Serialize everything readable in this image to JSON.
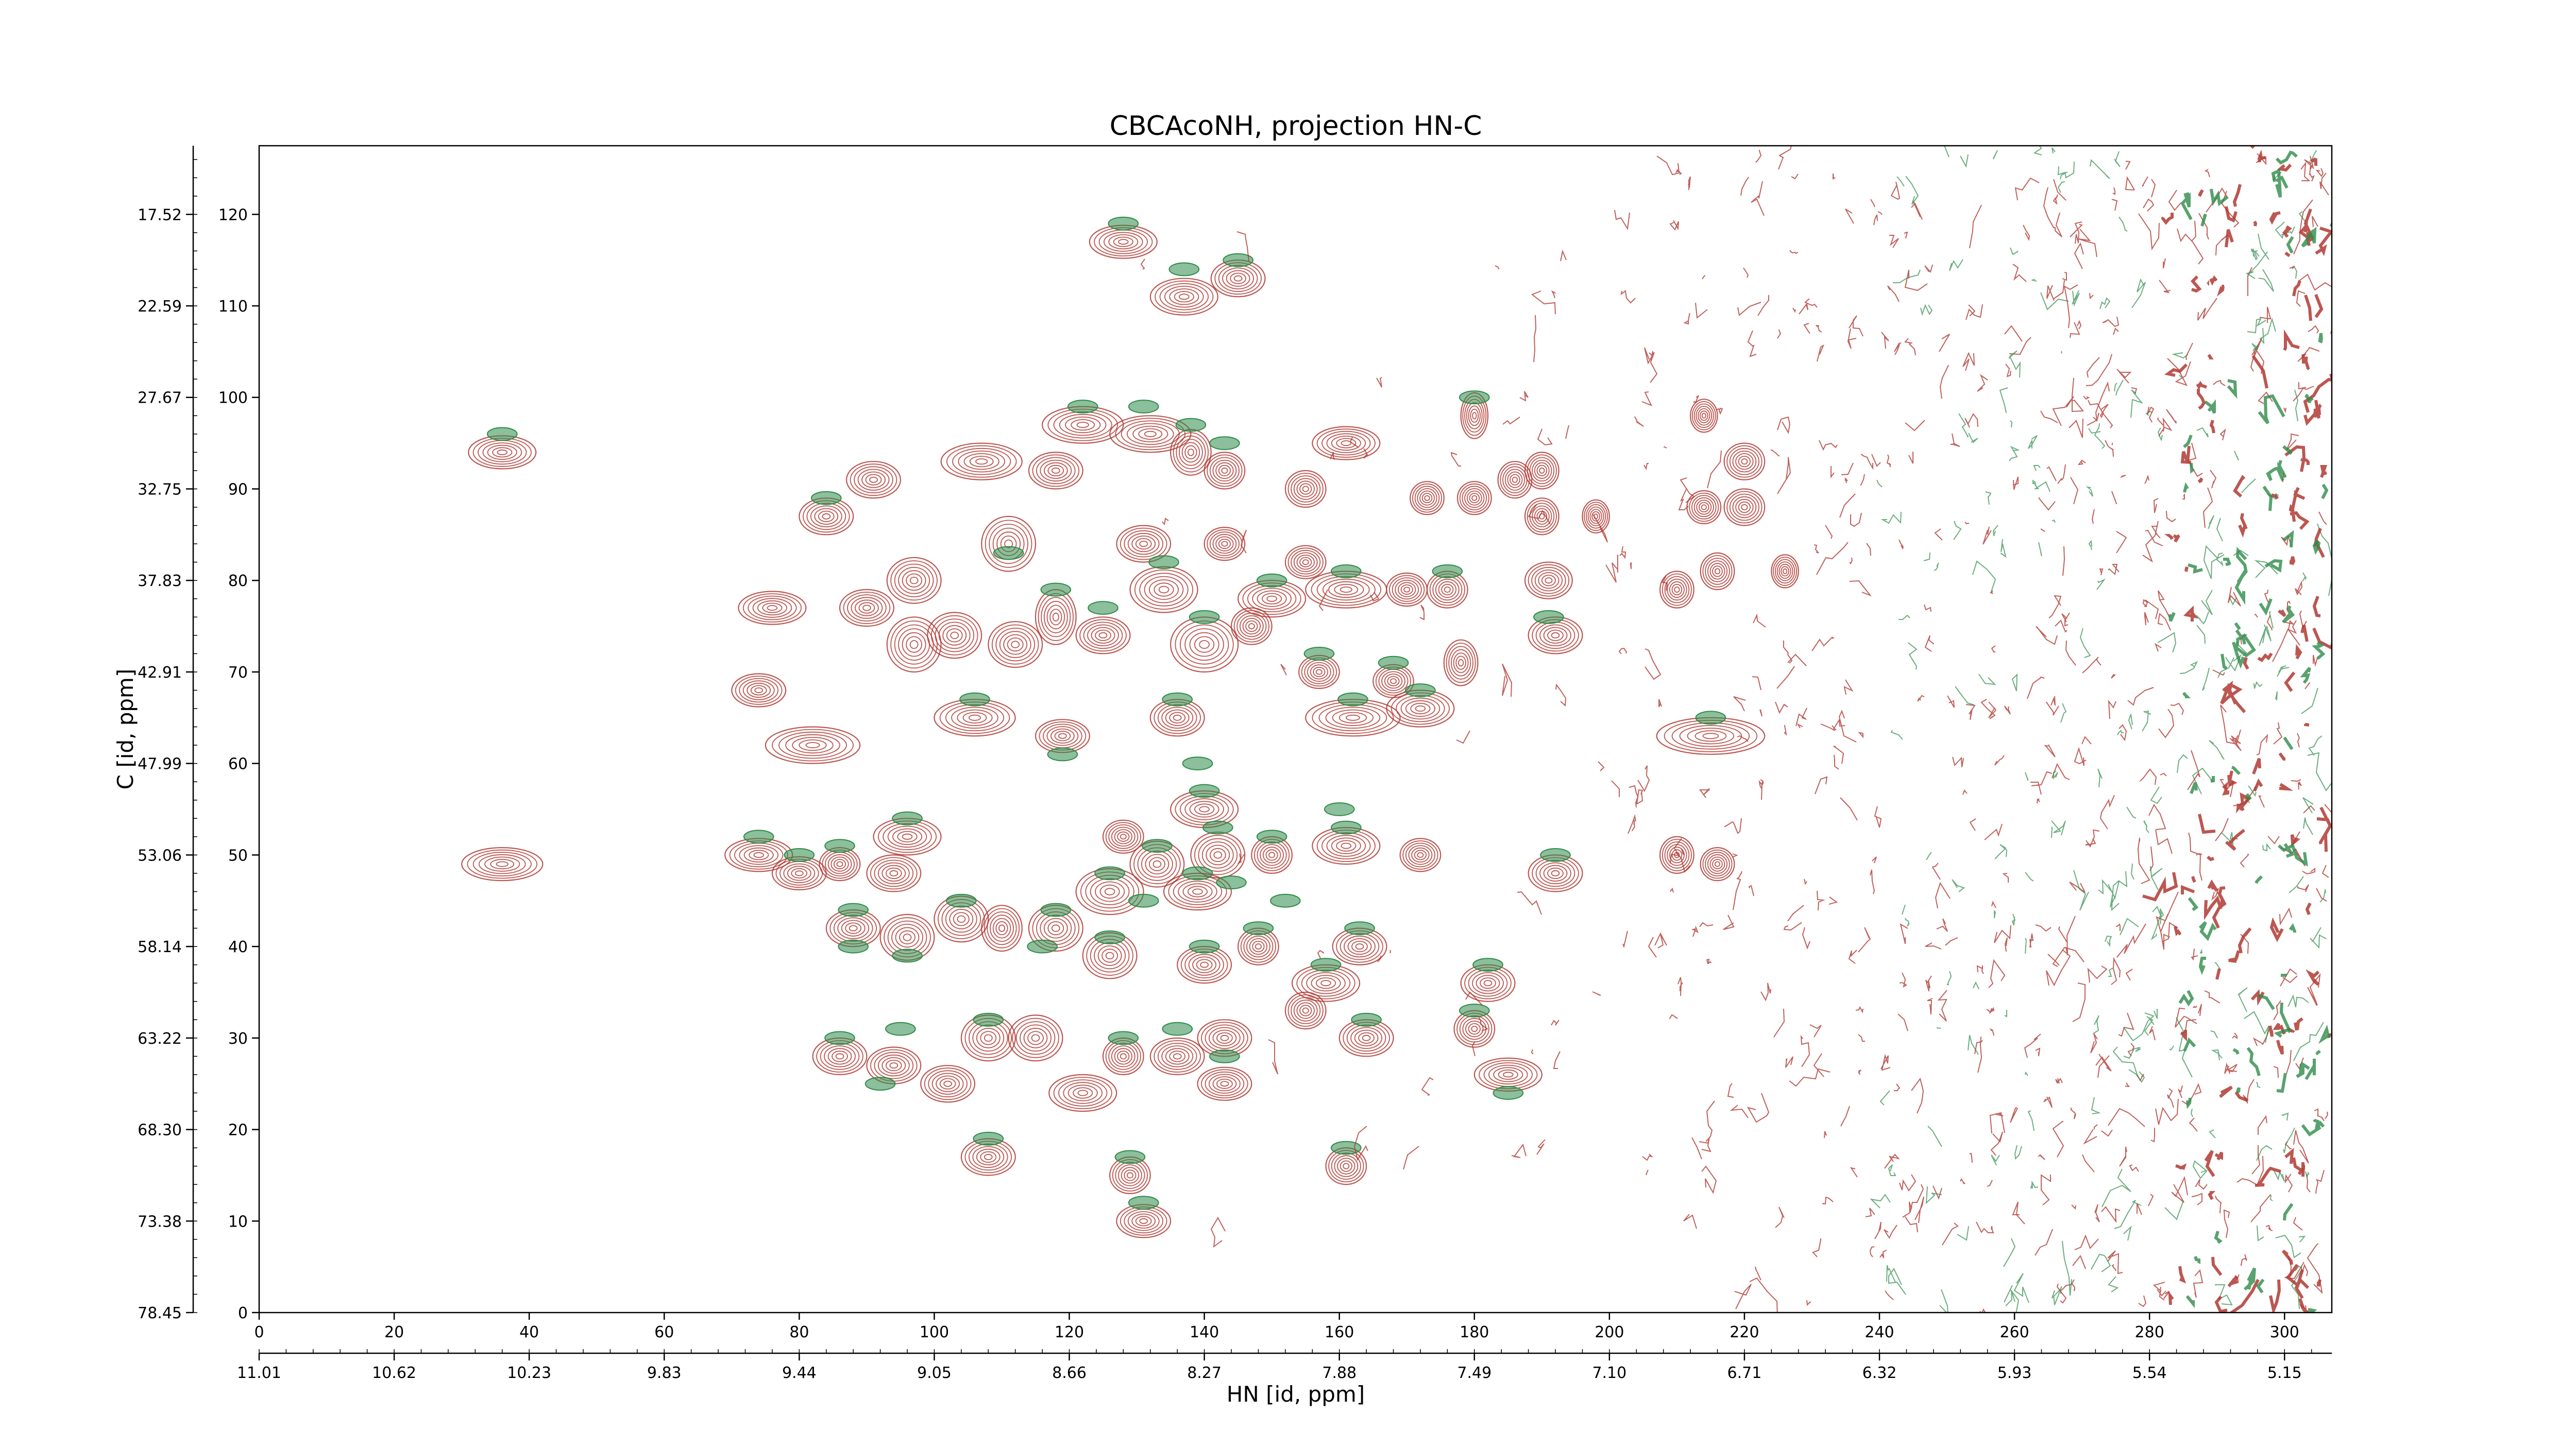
{
  "chart_data": {
    "type": "contour",
    "title": "CBCAcoNH, projection HN-C",
    "xlabel": "HN [id, ppm]",
    "ylabel": "C [id, ppm]",
    "xlim": [
      0,
      307
    ],
    "ylim": [
      0,
      127.5
    ],
    "x_index_ticks": [
      "0",
      "20",
      "40",
      "60",
      "80",
      "100",
      "120",
      "140",
      "160",
      "180",
      "200",
      "220",
      "240",
      "260",
      "280",
      "300"
    ],
    "x_ppm_ticks": [
      "11.01",
      "10.62",
      "10.23",
      "9.83",
      "9.44",
      "9.05",
      "8.66",
      "8.27",
      "7.88",
      "7.49",
      "7.10",
      "6.71",
      "6.32",
      "5.93",
      "5.54",
      "5.15"
    ],
    "y_index_ticks": [
      "0",
      "10",
      "20",
      "30",
      "40",
      "50",
      "60",
      "70",
      "80",
      "90",
      "100",
      "110",
      "120"
    ],
    "y_ppm_ticks": [
      "78.45",
      "73.38",
      "68.30",
      "63.22",
      "58.14",
      "53.06",
      "47.99",
      "42.91",
      "37.83",
      "32.75",
      "27.67",
      "22.59",
      "17.52"
    ],
    "colors": {
      "positive": "#b03a32",
      "negative": "#2e8b4a"
    },
    "peaks": [
      {
        "x": 36,
        "y": 94,
        "w": 5,
        "h": 1.8
      },
      {
        "x": 36,
        "y": 49,
        "w": 6,
        "h": 1.8
      },
      {
        "x": 128,
        "y": 117,
        "w": 5,
        "h": 1.8
      },
      {
        "x": 137,
        "y": 111,
        "w": 5,
        "h": 2
      },
      {
        "x": 145,
        "y": 113,
        "w": 4,
        "h": 2
      },
      {
        "x": 84,
        "y": 87,
        "w": 4,
        "h": 2
      },
      {
        "x": 91,
        "y": 91,
        "w": 4,
        "h": 2
      },
      {
        "x": 76,
        "y": 77,
        "w": 5,
        "h": 1.8
      },
      {
        "x": 74,
        "y": 68,
        "w": 4,
        "h": 1.8
      },
      {
        "x": 82,
        "y": 62,
        "w": 7,
        "h": 2
      },
      {
        "x": 107,
        "y": 93,
        "w": 6,
        "h": 2
      },
      {
        "x": 111,
        "y": 84,
        "w": 4,
        "h": 3
      },
      {
        "x": 118,
        "y": 92,
        "w": 4,
        "h": 2
      },
      {
        "x": 122,
        "y": 97,
        "w": 6,
        "h": 2
      },
      {
        "x": 132,
        "y": 96,
        "w": 6,
        "h": 2
      },
      {
        "x": 138,
        "y": 94,
        "w": 3,
        "h": 2.5
      },
      {
        "x": 143,
        "y": 92,
        "w": 3,
        "h": 2
      },
      {
        "x": 97,
        "y": 80,
        "w": 4,
        "h": 2.5
      },
      {
        "x": 90,
        "y": 77,
        "w": 4,
        "h": 2
      },
      {
        "x": 97,
        "y": 73,
        "w": 4,
        "h": 3
      },
      {
        "x": 103,
        "y": 74,
        "w": 4,
        "h": 2.5
      },
      {
        "x": 112,
        "y": 73,
        "w": 4,
        "h": 2.5
      },
      {
        "x": 118,
        "y": 76,
        "w": 3,
        "h": 3
      },
      {
        "x": 125,
        "y": 74,
        "w": 4,
        "h": 2
      },
      {
        "x": 131,
        "y": 84,
        "w": 4,
        "h": 2
      },
      {
        "x": 134,
        "y": 79,
        "w": 5,
        "h": 2.5
      },
      {
        "x": 140,
        "y": 73,
        "w": 5,
        "h": 3
      },
      {
        "x": 147,
        "y": 75,
        "w": 3,
        "h": 2
      },
      {
        "x": 143,
        "y": 84,
        "w": 3,
        "h": 1.8
      },
      {
        "x": 155,
        "y": 82,
        "w": 3,
        "h": 1.8
      },
      {
        "x": 150,
        "y": 78,
        "w": 5,
        "h": 2
      },
      {
        "x": 161,
        "y": 79,
        "w": 6,
        "h": 2
      },
      {
        "x": 170,
        "y": 79,
        "w": 3,
        "h": 1.8
      },
      {
        "x": 176,
        "y": 79,
        "w": 3,
        "h": 2
      },
      {
        "x": 155,
        "y": 90,
        "w": 3,
        "h": 2
      },
      {
        "x": 161,
        "y": 95,
        "w": 5,
        "h": 1.8
      },
      {
        "x": 173,
        "y": 89,
        "w": 2.5,
        "h": 1.8
      },
      {
        "x": 180,
        "y": 89,
        "w": 2.5,
        "h": 1.8
      },
      {
        "x": 186,
        "y": 91,
        "w": 2.5,
        "h": 2
      },
      {
        "x": 190,
        "y": 92,
        "w": 2.5,
        "h": 2
      },
      {
        "x": 190,
        "y": 87,
        "w": 2.5,
        "h": 2
      },
      {
        "x": 198,
        "y": 87,
        "w": 2,
        "h": 1.8
      },
      {
        "x": 180,
        "y": 98,
        "w": 2,
        "h": 2.5
      },
      {
        "x": 191,
        "y": 80,
        "w": 3.5,
        "h": 2
      },
      {
        "x": 192,
        "y": 74,
        "w": 4,
        "h": 2
      },
      {
        "x": 157,
        "y": 70,
        "w": 3,
        "h": 1.8
      },
      {
        "x": 168,
        "y": 69,
        "w": 3,
        "h": 1.8
      },
      {
        "x": 178,
        "y": 71,
        "w": 2.5,
        "h": 2.5
      },
      {
        "x": 106,
        "y": 65,
        "w": 6,
        "h": 2
      },
      {
        "x": 119,
        "y": 63,
        "w": 4,
        "h": 1.8
      },
      {
        "x": 136,
        "y": 65,
        "w": 4,
        "h": 2
      },
      {
        "x": 162,
        "y": 65,
        "w": 7,
        "h": 2
      },
      {
        "x": 172,
        "y": 66,
        "w": 5,
        "h": 2
      },
      {
        "x": 215,
        "y": 63,
        "w": 8,
        "h": 2
      },
      {
        "x": 210,
        "y": 79,
        "w": 2.5,
        "h": 2
      },
      {
        "x": 216,
        "y": 81,
        "w": 2.5,
        "h": 2
      },
      {
        "x": 226,
        "y": 81,
        "w": 2,
        "h": 1.8
      },
      {
        "x": 214,
        "y": 88,
        "w": 2.5,
        "h": 1.8
      },
      {
        "x": 220,
        "y": 88,
        "w": 3,
        "h": 2
      },
      {
        "x": 220,
        "y": 93,
        "w": 3,
        "h": 2
      },
      {
        "x": 214,
        "y": 98,
        "w": 2,
        "h": 1.8
      },
      {
        "x": 74,
        "y": 50,
        "w": 5,
        "h": 1.8
      },
      {
        "x": 80,
        "y": 48,
        "w": 4,
        "h": 1.8
      },
      {
        "x": 86,
        "y": 49,
        "w": 3,
        "h": 1.8
      },
      {
        "x": 94,
        "y": 48,
        "w": 4,
        "h": 2
      },
      {
        "x": 96,
        "y": 52,
        "w": 5,
        "h": 2
      },
      {
        "x": 88,
        "y": 42,
        "w": 4,
        "h": 2
      },
      {
        "x": 96,
        "y": 41,
        "w": 4,
        "h": 2.5
      },
      {
        "x": 104,
        "y": 43,
        "w": 4,
        "h": 2.5
      },
      {
        "x": 110,
        "y": 42,
        "w": 3,
        "h": 2.5
      },
      {
        "x": 118,
        "y": 42,
        "w": 4,
        "h": 2.5
      },
      {
        "x": 126,
        "y": 46,
        "w": 5,
        "h": 2.5
      },
      {
        "x": 133,
        "y": 49,
        "w": 4,
        "h": 2.5
      },
      {
        "x": 139,
        "y": 46,
        "w": 5,
        "h": 2
      },
      {
        "x": 142,
        "y": 50,
        "w": 4,
        "h": 2.5
      },
      {
        "x": 150,
        "y": 50,
        "w": 3,
        "h": 2
      },
      {
        "x": 140,
        "y": 55,
        "w": 5,
        "h": 2
      },
      {
        "x": 128,
        "y": 52,
        "w": 3,
        "h": 1.8
      },
      {
        "x": 161,
        "y": 51,
        "w": 5,
        "h": 2
      },
      {
        "x": 172,
        "y": 50,
        "w": 3,
        "h": 1.8
      },
      {
        "x": 192,
        "y": 48,
        "w": 4,
        "h": 2
      },
      {
        "x": 210,
        "y": 50,
        "w": 2.5,
        "h": 2
      },
      {
        "x": 216,
        "y": 49,
        "w": 2.5,
        "h": 1.8
      },
      {
        "x": 126,
        "y": 39,
        "w": 4,
        "h": 2.5
      },
      {
        "x": 140,
        "y": 38,
        "w": 4,
        "h": 2
      },
      {
        "x": 148,
        "y": 40,
        "w": 3,
        "h": 2
      },
      {
        "x": 158,
        "y": 36,
        "w": 5,
        "h": 2
      },
      {
        "x": 163,
        "y": 40,
        "w": 4,
        "h": 2
      },
      {
        "x": 182,
        "y": 36,
        "w": 4,
        "h": 2
      },
      {
        "x": 86,
        "y": 28,
        "w": 4,
        "h": 2
      },
      {
        "x": 94,
        "y": 27,
        "w": 4,
        "h": 2
      },
      {
        "x": 102,
        "y": 25,
        "w": 4,
        "h": 2
      },
      {
        "x": 108,
        "y": 30,
        "w": 4,
        "h": 2.5
      },
      {
        "x": 115,
        "y": 30,
        "w": 4,
        "h": 2.5
      },
      {
        "x": 122,
        "y": 24,
        "w": 5,
        "h": 2
      },
      {
        "x": 128,
        "y": 28,
        "w": 3,
        "h": 2
      },
      {
        "x": 136,
        "y": 28,
        "w": 4,
        "h": 2
      },
      {
        "x": 143,
        "y": 25,
        "w": 4,
        "h": 1.8
      },
      {
        "x": 143,
        "y": 30,
        "w": 4,
        "h": 2
      },
      {
        "x": 155,
        "y": 33,
        "w": 3,
        "h": 2
      },
      {
        "x": 164,
        "y": 30,
        "w": 4,
        "h": 2
      },
      {
        "x": 180,
        "y": 31,
        "w": 3,
        "h": 2
      },
      {
        "x": 185,
        "y": 26,
        "w": 5,
        "h": 1.8
      },
      {
        "x": 108,
        "y": 17,
        "w": 4,
        "h": 2
      },
      {
        "x": 129,
        "y": 15,
        "w": 3,
        "h": 2
      },
      {
        "x": 131,
        "y": 10,
        "w": 4,
        "h": 1.8
      },
      {
        "x": 161,
        "y": 16,
        "w": 3,
        "h": 2
      }
    ],
    "green_spots": [
      [
        36,
        96
      ],
      [
        128,
        119
      ],
      [
        137,
        114
      ],
      [
        145,
        115
      ],
      [
        84,
        89
      ],
      [
        122,
        99
      ],
      [
        131,
        99
      ],
      [
        138,
        97
      ],
      [
        143,
        95
      ],
      [
        111,
        83
      ],
      [
        118,
        79
      ],
      [
        125,
        77
      ],
      [
        134,
        82
      ],
      [
        140,
        76
      ],
      [
        150,
        80
      ],
      [
        161,
        81
      ],
      [
        176,
        81
      ],
      [
        180,
        100
      ],
      [
        191,
        76
      ],
      [
        157,
        72
      ],
      [
        168,
        71
      ],
      [
        106,
        67
      ],
      [
        119,
        61
      ],
      [
        136,
        67
      ],
      [
        162,
        67
      ],
      [
        172,
        68
      ],
      [
        215,
        65
      ],
      [
        74,
        52
      ],
      [
        80,
        50
      ],
      [
        86,
        51
      ],
      [
        96,
        54
      ],
      [
        88,
        44
      ],
      [
        104,
        45
      ],
      [
        118,
        44
      ],
      [
        126,
        48
      ],
      [
        133,
        51
      ],
      [
        139,
        48
      ],
      [
        142,
        53
      ],
      [
        150,
        52
      ],
      [
        140,
        57
      ],
      [
        161,
        53
      ],
      [
        192,
        50
      ],
      [
        88,
        40
      ],
      [
        96,
        39
      ],
      [
        126,
        41
      ],
      [
        140,
        40
      ],
      [
        148,
        42
      ],
      [
        158,
        38
      ],
      [
        163,
        42
      ],
      [
        182,
        38
      ],
      [
        86,
        30
      ],
      [
        108,
        32
      ],
      [
        128,
        30
      ],
      [
        136,
        31
      ],
      [
        143,
        28
      ],
      [
        164,
        32
      ],
      [
        180,
        33
      ],
      [
        185,
        24
      ],
      [
        108,
        19
      ],
      [
        129,
        17
      ],
      [
        131,
        12
      ],
      [
        161,
        18
      ],
      [
        152,
        45
      ],
      [
        131,
        45
      ],
      [
        144,
        47
      ],
      [
        116,
        40
      ],
      [
        160,
        55
      ],
      [
        92,
        25
      ],
      [
        139,
        60
      ],
      [
        95,
        31
      ]
    ]
  }
}
